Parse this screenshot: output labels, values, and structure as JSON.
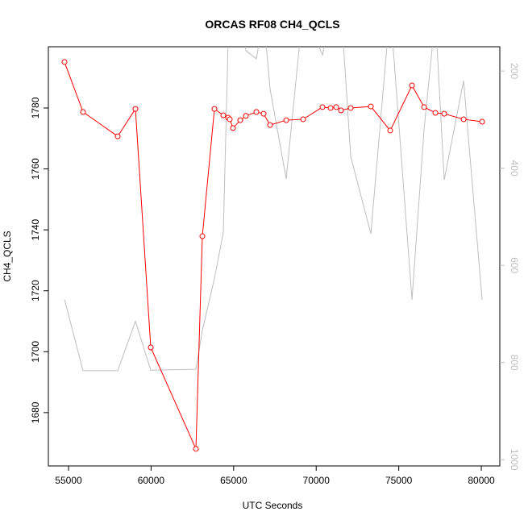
{
  "chart_data": {
    "type": "line",
    "title": "ORCAS RF08 CH4_QCLS",
    "x_label": "UTC Seconds",
    "y_label": "CH4_QCLS",
    "x": [
      54756,
      55879,
      57979,
      59053,
      59980,
      62715,
      63105,
      63838,
      64375,
      64668,
      64766,
      64961,
      65400,
      65742,
      66377,
      66816,
      67207,
      68184,
      69209,
      70381,
      70869,
      71211,
      71504,
      72090,
      73311,
      74482,
      75801,
      76533,
      77217,
      77754,
      78926,
      80049
    ],
    "series": [
      {
        "color": "#ff0000",
        "markers": true,
        "values": [
          1795.1,
          1778.7,
          1770.7,
          1779.7,
          1701.4,
          1668.1,
          1737.9,
          1779.7,
          1777.6,
          1776.8,
          1776.3,
          1773.4,
          1776.0,
          1777.4,
          1778.7,
          1778.1,
          1774.4,
          1776.0,
          1776.3,
          1780.3,
          1780.0,
          1780.3,
          1779.2,
          1780.0,
          1780.5,
          1772.6,
          1787.4,
          1780.3,
          1778.4,
          1778.1,
          1776.3,
          1775.5
        ]
      },
      {
        "color": "#bebebe",
        "axis": "y2",
        "markers": false,
        "values": [
          670,
          817,
          817,
          715,
          816,
          814,
          734,
          627,
          532,
          137,
          104,
          87,
          70,
          158,
          175,
          87,
          237,
          422,
          70,
          167,
          87,
          70,
          70,
          376,
          535,
          70,
          671,
          320,
          87,
          424,
          220,
          671
        ]
      }
    ],
    "xlim": [
      53780,
      81120
    ],
    "xticks": [
      55000,
      60000,
      65000,
      70000,
      75000,
      80000
    ],
    "ylim": [
      1662.5,
      1800.1
    ],
    "yticks": [
      1680,
      1700,
      1720,
      1740,
      1760,
      1780
    ],
    "y2lim": [
      1013,
      150
    ],
    "y2ticks": [
      200,
      400,
      600,
      800,
      1000
    ],
    "y2_color": "#bebebe"
  }
}
